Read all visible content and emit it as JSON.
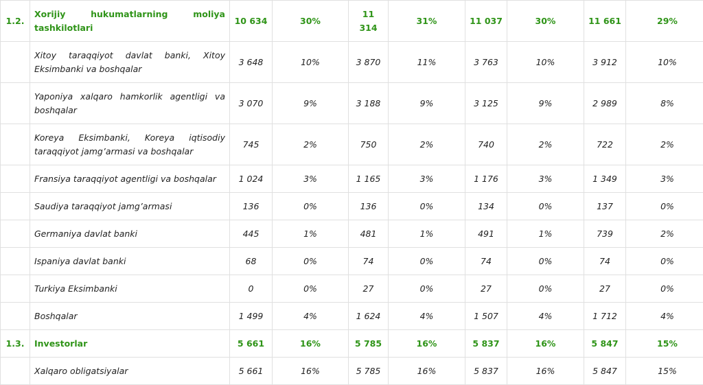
{
  "rows": [
    {
      "type": "head",
      "index": "1.2.",
      "label": "Xorijiy hukumatlarning moliya tashkilotlari",
      "cells": [
        "10 634",
        "30%",
        "11 314",
        "31%",
        "11 037",
        "30%",
        "11 661",
        "29%"
      ]
    },
    {
      "type": "sub",
      "index": "",
      "label": "Xitoy taraqqiyot davlat banki, Xitoy Eksimbanki va boshqalar",
      "cells": [
        "3 648",
        "10%",
        "3 870",
        "11%",
        "3 763",
        "10%",
        "3 912",
        "10%"
      ]
    },
    {
      "type": "sub",
      "index": "",
      "label": "Yaponiya xalqaro hamkorlik agentligi va boshqalar",
      "cells": [
        "3 070",
        "9%",
        "3 188",
        "9%",
        "3 125",
        "9%",
        "2 989",
        "8%"
      ]
    },
    {
      "type": "sub",
      "index": "",
      "label": "Koreya Eksimbanki, Koreya iqtisodiy taraqqiyot jamg’armasi va boshqalar",
      "cells": [
        "745",
        "2%",
        "750",
        "2%",
        "740",
        "2%",
        "722",
        "2%"
      ]
    },
    {
      "type": "sub",
      "index": "",
      "label": "Fransiya taraqqiyot agentligi va boshqalar",
      "cells": [
        "1 024",
        "3%",
        "1 165",
        "3%",
        "1 176",
        "3%",
        "1 349",
        "3%"
      ]
    },
    {
      "type": "sub",
      "index": "",
      "label": "Saudiya taraqqiyot jamg’armasi",
      "cells": [
        "136",
        "0%",
        "136",
        "0%",
        "134",
        "0%",
        "137",
        "0%"
      ]
    },
    {
      "type": "sub",
      "index": "",
      "label": "Germaniya davlat banki",
      "cells": [
        "445",
        "1%",
        "481",
        "1%",
        "491",
        "1%",
        "739",
        "2%"
      ]
    },
    {
      "type": "sub",
      "index": "",
      "label": "Ispaniya davlat banki",
      "cells": [
        "68",
        "0%",
        "74",
        "0%",
        "74",
        "0%",
        "74",
        "0%"
      ]
    },
    {
      "type": "sub",
      "index": "",
      "label": "Turkiya Eksimbanki",
      "cells": [
        "0",
        "0%",
        "27",
        "0%",
        "27",
        "0%",
        "27",
        "0%"
      ]
    },
    {
      "type": "sub",
      "index": "",
      "label": "Boshqalar",
      "cells": [
        "1 499",
        "4%",
        "1 624",
        "4%",
        "1 507",
        "4%",
        "1 712",
        "4%"
      ]
    },
    {
      "type": "head",
      "index": "1.3.",
      "label": "Investorlar",
      "cells": [
        "5 661",
        "16%",
        "5 785",
        "16%",
        "5 837",
        "16%",
        "5 847",
        "15%"
      ]
    },
    {
      "type": "sub",
      "index": "",
      "label": "Xalqaro obligatsiyalar",
      "cells": [
        "5 661",
        "16%",
        "5 785",
        "16%",
        "5 837",
        "16%",
        "5 847",
        "15%"
      ]
    }
  ]
}
